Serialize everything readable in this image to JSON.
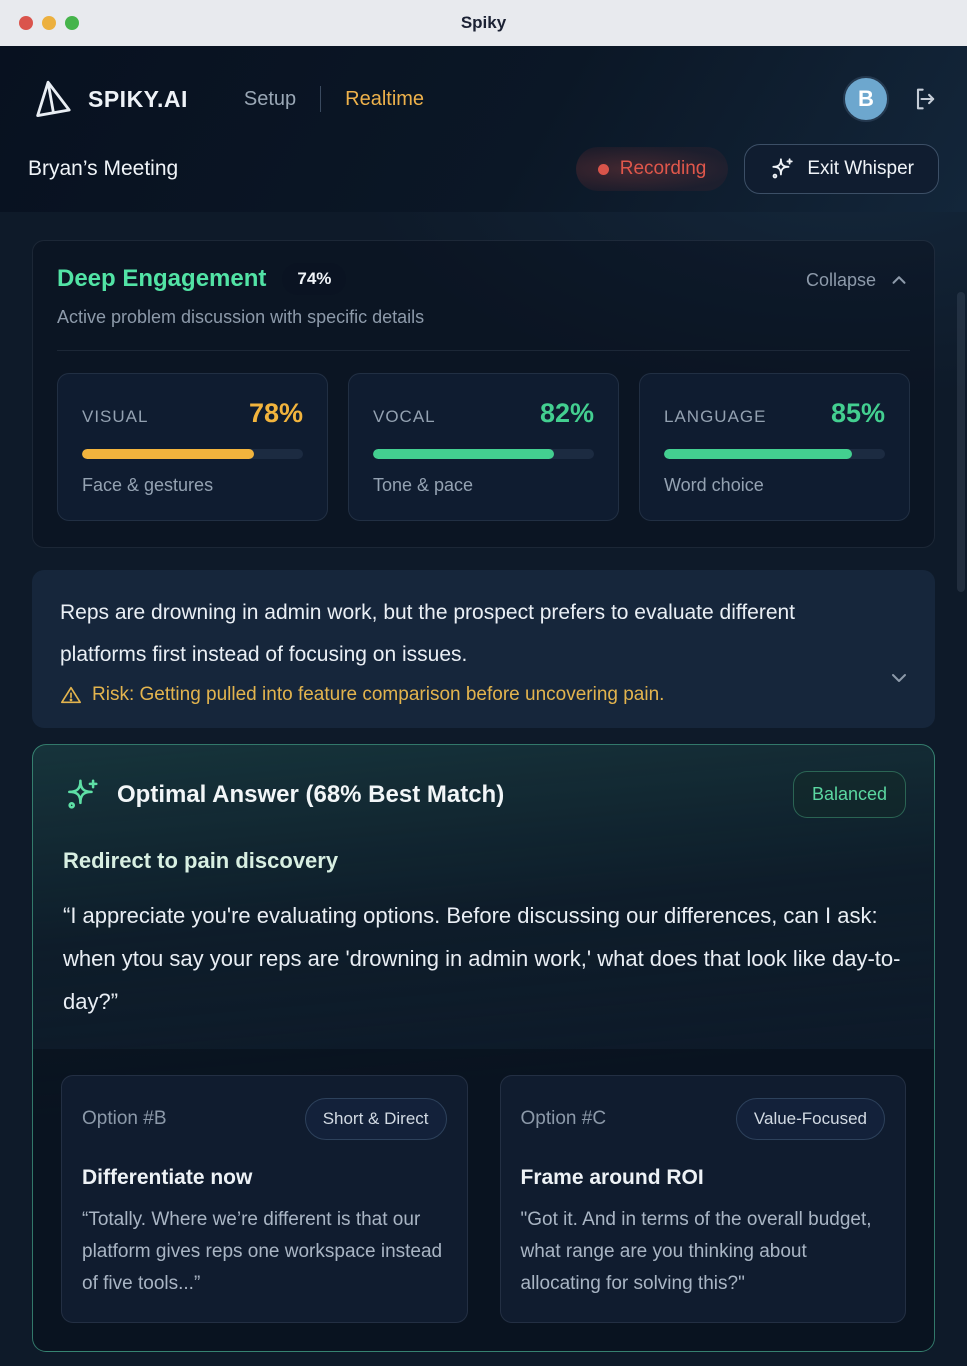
{
  "window": {
    "title": "Spiky"
  },
  "header": {
    "brand": "SPIKY.AI",
    "nav": {
      "setup": "Setup",
      "realtime": "Realtime"
    },
    "avatar_initial": "B",
    "meeting_title": "Bryan’s Meeting",
    "recording_label": "Recording",
    "exit_whisper_label": "Exit Whisper"
  },
  "engagement": {
    "title": "Deep Engagement",
    "score": "74%",
    "subtitle": "Active problem discussion with specific details",
    "collapse_label": "Collapse",
    "metrics": [
      {
        "label": "VISUAL",
        "value": "78%",
        "pct": 78,
        "desc": "Face & gestures",
        "color": "#f2b43d"
      },
      {
        "label": "VOCAL",
        "value": "82%",
        "pct": 82,
        "desc": "Tone & pace",
        "color": "#43cf90"
      },
      {
        "label": "LANGUAGE",
        "value": "85%",
        "pct": 85,
        "desc": "Word choice",
        "color": "#43cf90"
      }
    ]
  },
  "summary": {
    "text": "Reps are drowning in admin work, but the prospect prefers to evaluate different platforms first instead of focusing on issues.",
    "risk": "Risk: Getting pulled into feature comparison before uncovering pain."
  },
  "optimal": {
    "title": "Optimal Answer (68% Best Match)",
    "badge": "Balanced",
    "heading": "Redirect to pain discovery",
    "quote": "“I appreciate you're evaluating options. Before discussing our differences, can I ask: when ytou say your reps are 'drowning in admin work,' what does that look like day-to-day?”",
    "options": [
      {
        "label": "Option #B",
        "badge": "Short & Direct",
        "heading": "Differentiate now",
        "quote": "“Totally. Where we’re different is that our platform gives reps one workspace instead of five tools...”"
      },
      {
        "label": "Option #C",
        "badge": "Value-Focused",
        "heading": "Frame around ROI",
        "quote": "\"Got it. And in terms of the overall budget, what range are you thinking about allocating for solving this?\""
      }
    ]
  },
  "colors": {
    "accent_amber": "#edb14b",
    "accent_green": "#52e3a5",
    "recording_red": "#e0574b"
  }
}
